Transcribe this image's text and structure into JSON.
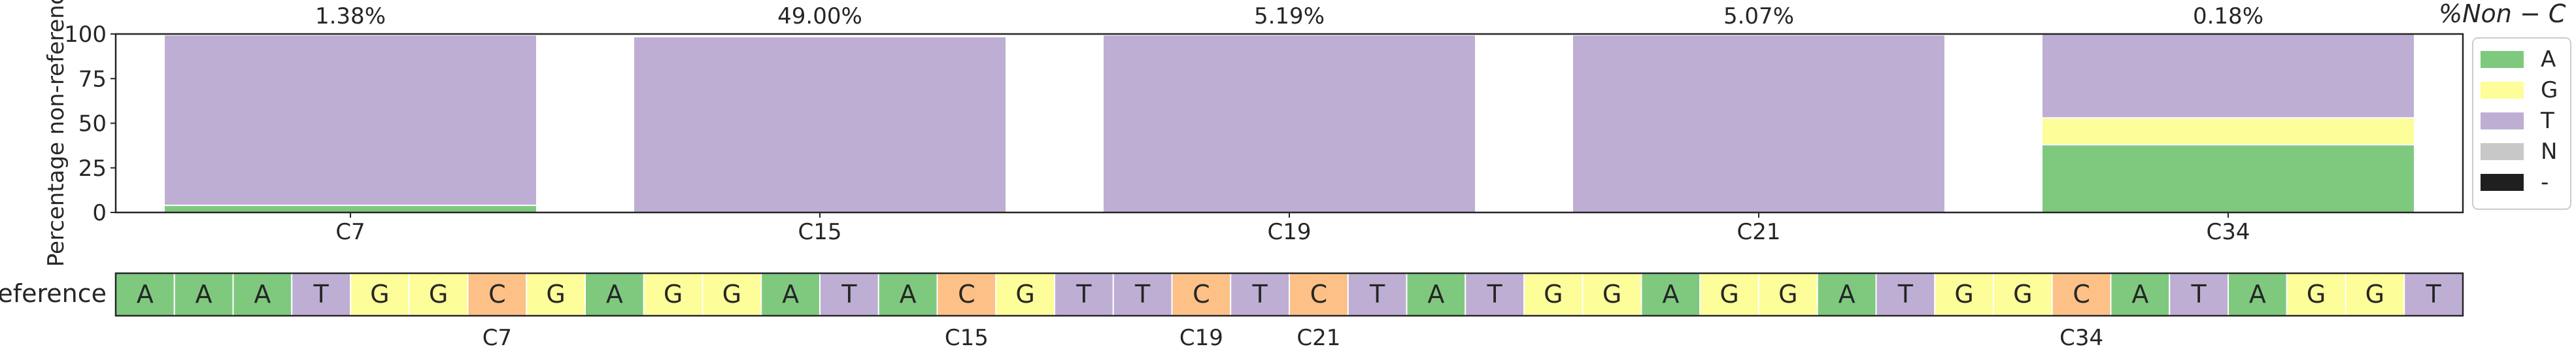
{
  "chart_data": {
    "type": "bar",
    "stacked": true,
    "categories": [
      "C7",
      "C15",
      "C19",
      "C21",
      "C34"
    ],
    "top_labels": [
      "1.38%",
      "49.00%",
      "5.19%",
      "5.07%",
      "0.18%"
    ],
    "top_axis_label": "%Non − C",
    "ylabel": "Percentage non-reference",
    "ylim": [
      0,
      100
    ],
    "yticks": [
      "0",
      "25",
      "50",
      "75",
      "100"
    ],
    "series": [
      {
        "name": "A",
        "color": "#7fc97f",
        "values": [
          4,
          0,
          0,
          0,
          38
        ]
      },
      {
        "name": "G",
        "color": "#fdfd99",
        "values": [
          0,
          0,
          0,
          0,
          15
        ]
      },
      {
        "name": "T",
        "color": "#beaed4",
        "values": [
          95.5,
          98.5,
          99.5,
          99.5,
          47
        ]
      },
      {
        "name": "N",
        "color": "#c8c8c8",
        "values": [
          0,
          0,
          0,
          0,
          0
        ]
      },
      {
        "name": "-",
        "color": "#1f1f1f",
        "values": [
          0,
          0,
          0,
          0,
          0
        ]
      }
    ],
    "legend_position": "right",
    "reference": {
      "label": "Reference",
      "bases": [
        "A",
        "A",
        "A",
        "T",
        "G",
        "G",
        "C",
        "G",
        "A",
        "G",
        "G",
        "A",
        "T",
        "A",
        "C",
        "G",
        "T",
        "T",
        "C",
        "T",
        "C",
        "T",
        "A",
        "T",
        "G",
        "G",
        "A",
        "G",
        "G",
        "A",
        "T",
        "G",
        "G",
        "C",
        "A",
        "T",
        "A",
        "G",
        "G",
        "T"
      ],
      "colors": {
        "A": "#7fc97f",
        "G": "#fdfd99",
        "T": "#beaed4",
        "C": "#fdc086"
      },
      "markers": [
        {
          "label": "C7",
          "index": 6
        },
        {
          "label": "C15",
          "index": 14
        },
        {
          "label": "C19",
          "index": 18
        },
        {
          "label": "C21",
          "index": 20
        },
        {
          "label": "C34",
          "index": 33
        }
      ]
    }
  }
}
